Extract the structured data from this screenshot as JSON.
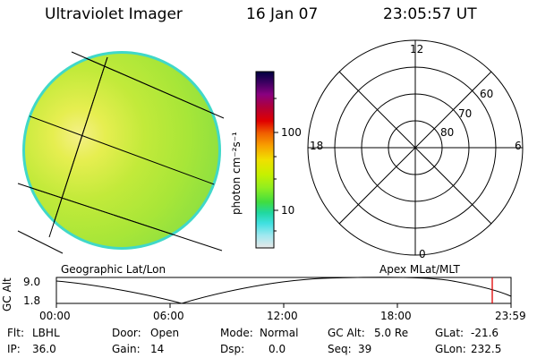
{
  "header": {
    "instrument": "Ultraviolet Imager",
    "date": "16 Jan 07",
    "time": "23:05:57 UT"
  },
  "image_panel": {
    "label": "Geographic Lat/Lon"
  },
  "colorbar": {
    "unit": "photon cm⁻²s⁻¹",
    "ticks": [
      "100",
      "10"
    ],
    "colors": [
      "#000040",
      "#3a0060",
      "#8a0080",
      "#b0003a",
      "#e00000",
      "#f06000",
      "#f8a000",
      "#f0e000",
      "#c8f000",
      "#90ee20",
      "#40dd40",
      "#20d8a0",
      "#40e0e0",
      "#a0e8f0",
      "#e8e8e8"
    ]
  },
  "polar_plot": {
    "label": "Apex MLat/MLT",
    "mlt_labels": {
      "top": "12",
      "left": "18",
      "right": "6",
      "bottom": "0"
    },
    "lat_labels": [
      "60",
      "70",
      "80"
    ]
  },
  "altitude": {
    "axis_label": "GC Alt",
    "ticks": [
      "9.0",
      "1.8"
    ],
    "time_ticks": [
      "00:00",
      "06:00",
      "12:00",
      "18:00",
      "23:59"
    ]
  },
  "status": {
    "flt_label": "Flt:",
    "flt_value": "LBHL",
    "ip_label": "IP:",
    "ip_value": "36.0",
    "door_label": "Door:",
    "door_value": "Open",
    "gain_label": "Gain:",
    "gain_value": "14",
    "mode_label": "Mode:",
    "mode_value": "Normal",
    "dsp_label": "Dsp:",
    "dsp_value": "0.0",
    "gcalt_label": "GC Alt:",
    "gcalt_value": "5.0 Re",
    "seq_label": "Seq:",
    "seq_value": "39",
    "glat_label": "GLat:",
    "glat_value": "-21.6",
    "glon_label": "GLon:",
    "glon_value": "232.5"
  }
}
